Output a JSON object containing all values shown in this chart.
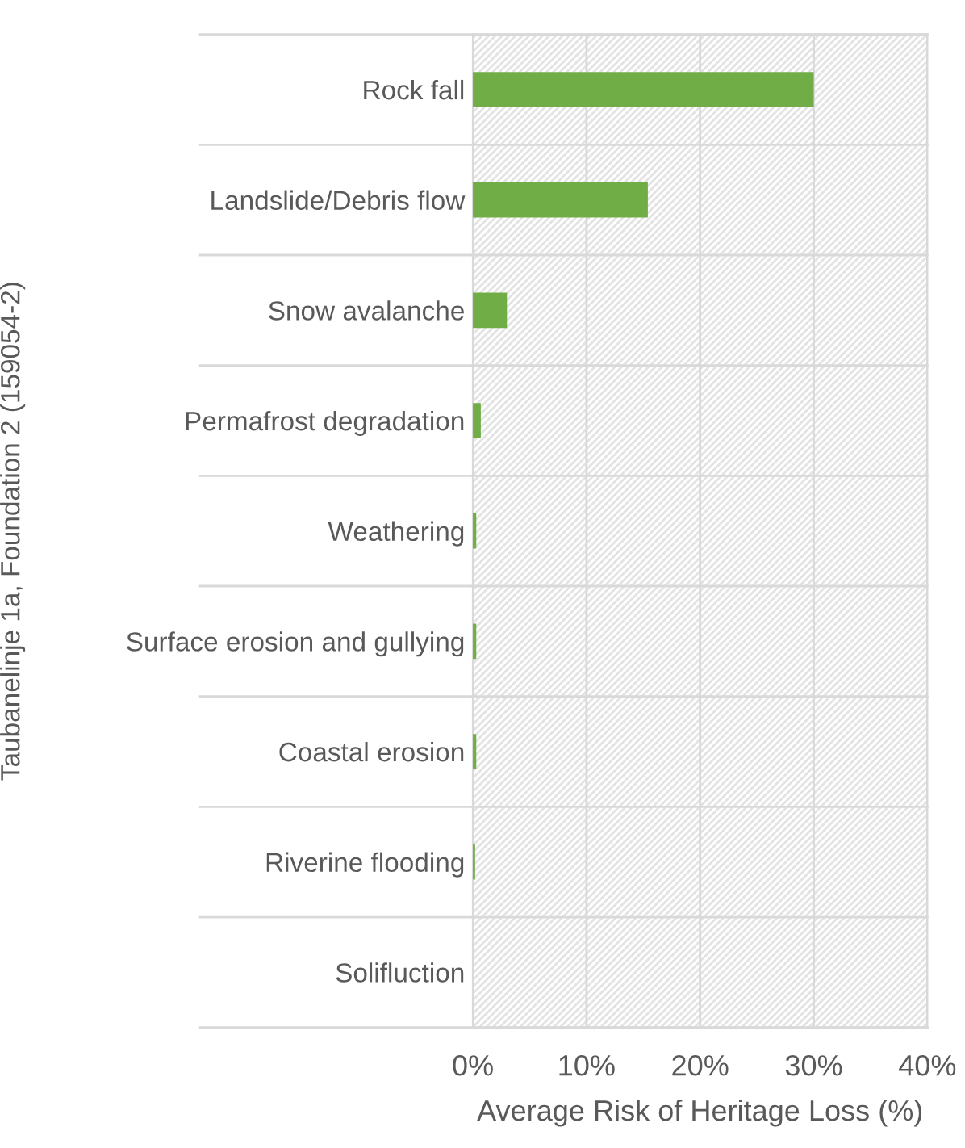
{
  "chart_data": {
    "type": "bar",
    "orientation": "horizontal",
    "categories": [
      "Rock fall",
      "Landslide/Debris flow",
      "Snow avalanche",
      "Permafrost degradation",
      "Weathering",
      "Surface erosion and gullying",
      "Coastal erosion",
      "Riverine flooding",
      "Solifluction"
    ],
    "values": [
      30,
      15.4,
      3.0,
      0.7,
      0.3,
      0.3,
      0.3,
      0.2,
      0
    ],
    "color": "#70ad47",
    "xlim": [
      0,
      40
    ],
    "xticks": [
      {
        "value": 0,
        "label": "0%"
      },
      {
        "value": 10,
        "label": "10%"
      },
      {
        "value": 20,
        "label": "20%"
      },
      {
        "value": 30,
        "label": "30%"
      },
      {
        "value": 40,
        "label": "40%"
      }
    ],
    "xlabel": "Average Risk of Heritage Loss (%)",
    "ylabel": "Taubanelinje 1a, Foundation 2 (159054-2)",
    "grid": "x"
  }
}
